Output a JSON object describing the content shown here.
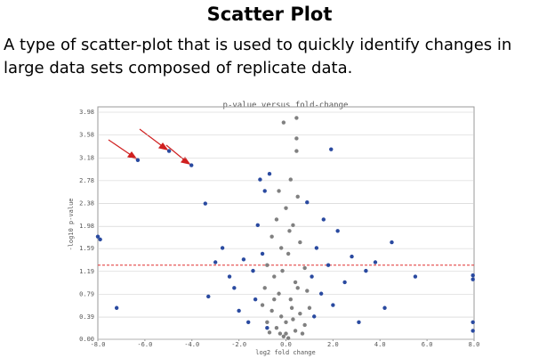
{
  "header": {
    "title": "Scatter Plot"
  },
  "description": [
    "A type of scatter-plot that is used to quickly identify changes in",
    "large data sets composed of replicate data."
  ],
  "chart_data": {
    "type": "scatter",
    "title": "p-value versus fold-change",
    "x_label": "log2 fold change",
    "y_label": "-log10 p-value",
    "xlim": [
      -8,
      8
    ],
    "ylim": [
      0,
      3.98
    ],
    "xticks": [
      {
        "value": -8,
        "label": "-8.0"
      },
      {
        "value": -6,
        "label": "-6.0"
      },
      {
        "value": -4,
        "label": "-4.0"
      },
      {
        "value": -2,
        "label": "-2.0"
      },
      {
        "value": 0,
        "label": "0.0"
      },
      {
        "value": 2,
        "label": "2.0"
      },
      {
        "value": 4,
        "label": "4.0"
      },
      {
        "value": 6,
        "label": "6.0"
      },
      {
        "value": 8,
        "label": "8.0"
      }
    ],
    "yticks": [
      {
        "value": 0,
        "label": "0.00"
      },
      0.39,
      0.79,
      1.19,
      1.59,
      1.98,
      2.38,
      2.78,
      3.18,
      3.58,
      3.98
    ],
    "grid": true,
    "threshold": 1.3,
    "threshold_color": "#e03030",
    "series": [
      {
        "color": "#808080",
        "x": [
          -0.1,
          0.45,
          0.45,
          0.45,
          0.2,
          -0.3,
          0.5,
          0.0,
          -0.4,
          0.3,
          -0.6,
          0.6,
          -0.2,
          0.1,
          -0.8,
          0.8,
          -0.5,
          0.4,
          -0.9,
          0.9,
          -0.3,
          0.2,
          -1.0,
          1.0,
          -0.6,
          0.6,
          -0.2,
          0.3,
          -0.8,
          0.8,
          -0.4,
          0.4,
          0.0,
          -0.1,
          0.1,
          -0.7,
          0.7,
          -0.5,
          0.5,
          -0.15,
          0.15,
          0.0,
          -0.25,
          0.25
        ],
        "values": [
          3.8,
          3.88,
          3.52,
          3.3,
          2.8,
          2.6,
          2.5,
          2.3,
          2.1,
          2.0,
          1.8,
          1.7,
          1.6,
          1.5,
          1.3,
          1.25,
          1.1,
          1.0,
          0.9,
          0.85,
          0.8,
          0.7,
          0.6,
          0.55,
          0.5,
          0.45,
          0.4,
          0.35,
          0.3,
          0.25,
          0.2,
          0.15,
          0.1,
          0.05,
          0.02,
          0.12,
          0.1,
          0.7,
          0.9,
          1.2,
          1.9,
          0.3,
          0.1,
          0.55
        ]
      },
      {
        "color": "#2a4aa0",
        "x": [
          -6.3,
          -4.97,
          -4.02,
          -3.43,
          1.92,
          -8.0,
          -7.9,
          -7.2,
          -3.0,
          -3.3,
          -2.7,
          -2.4,
          -2.2,
          -2.0,
          -1.8,
          -1.6,
          -1.4,
          -1.3,
          -1.2,
          -1.0,
          -0.9,
          -0.8,
          -1.1,
          1.1,
          1.2,
          1.3,
          1.5,
          1.6,
          1.8,
          2.0,
          2.2,
          2.5,
          2.8,
          3.1,
          3.4,
          3.8,
          4.2,
          4.5,
          5.5,
          7.95,
          7.95,
          7.95,
          7.95,
          0.9,
          -0.7
        ],
        "values": [
          3.14,
          3.3,
          3.05,
          2.38,
          3.33,
          1.8,
          1.75,
          0.55,
          1.35,
          0.75,
          1.6,
          1.1,
          0.9,
          0.5,
          1.4,
          0.3,
          1.2,
          0.7,
          2.0,
          1.5,
          2.6,
          0.2,
          2.8,
          1.1,
          0.4,
          1.6,
          0.8,
          2.1,
          1.3,
          0.6,
          1.9,
          1.0,
          1.45,
          0.3,
          1.2,
          1.35,
          0.55,
          1.7,
          1.1,
          1.12,
          1.05,
          0.3,
          0.15,
          2.4,
          2.9
        ]
      }
    ]
  }
}
